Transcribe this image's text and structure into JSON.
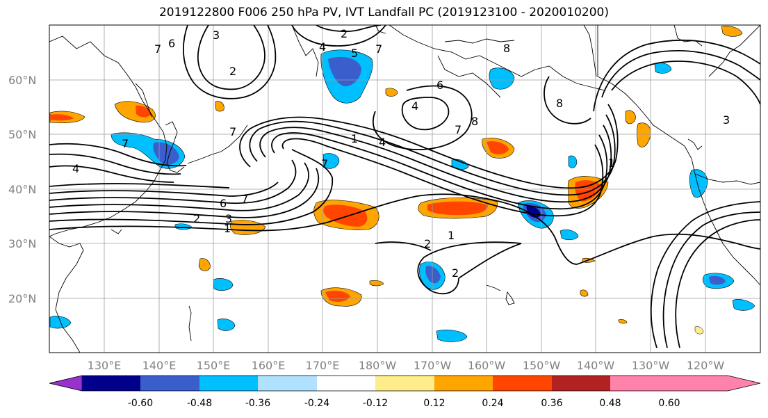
{
  "title": "2019122800 F006 250 hPa PV, IVT Landfall PC (2019123100 - 2020010200)",
  "map": {
    "lat_labels": [
      "60°N",
      "50°N",
      "40°N",
      "30°N",
      "20°N"
    ],
    "lon_labels": [
      "130°E",
      "140°E",
      "150°E",
      "160°E",
      "170°E",
      "180°W",
      "170°W",
      "160°W",
      "150°W",
      "140°W",
      "130°W",
      "120°W"
    ],
    "contour_labels": [
      "1",
      "2",
      "3",
      "4",
      "5",
      "6",
      "7",
      "8"
    ]
  },
  "colorbar": {
    "colors": [
      "#9932cc",
      "#00008b",
      "#3a5fcd",
      "#00bfff",
      "#b0e2ff",
      "#ffffff",
      "#ffec8b",
      "#ffa500",
      "#ff4500",
      "#b22222",
      "#ff82ab"
    ],
    "tick_labels": [
      "-0.60",
      "-0.48",
      "-0.36",
      "-0.24",
      "-0.12",
      "0.12",
      "0.24",
      "0.36",
      "0.48",
      "0.60"
    ]
  }
}
